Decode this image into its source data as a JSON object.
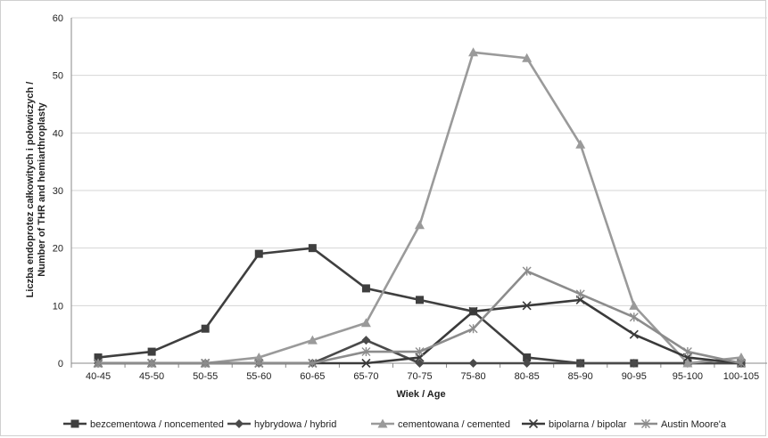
{
  "chart_data": {
    "type": "line",
    "categories": [
      "40-45",
      "45-50",
      "50-55",
      "55-60",
      "60-65",
      "65-70",
      "70-75",
      "75-80",
      "80-85",
      "85-90",
      "90-95",
      "95-100",
      "100-105"
    ],
    "xlabel": "Wiek / Age",
    "ylabel_lines": [
      "Liczba endoprotez całkowitych i połowiczych /",
      "Number of THR and hemiarthroplasty"
    ],
    "ylim": [
      0,
      60
    ],
    "yticks": [
      0,
      10,
      20,
      30,
      40,
      50,
      60
    ],
    "grid": true,
    "legend_position": "bottom",
    "series": [
      {
        "name": "bezcementowa / noncemented",
        "color": "#3f3f3f",
        "marker": "square",
        "values": [
          1,
          2,
          6,
          19,
          20,
          13,
          11,
          9,
          1,
          0,
          0,
          0,
          0
        ]
      },
      {
        "name": "hybrydowa / hybrid",
        "color": "#4a4a4a",
        "marker": "diamond",
        "values": [
          0,
          0,
          0,
          0,
          0,
          4,
          0,
          0,
          0,
          0,
          0,
          0,
          0
        ]
      },
      {
        "name": "cementowana / cemented",
        "color": "#9a9a9a",
        "marker": "triangle",
        "values": [
          0,
          0,
          0,
          1,
          4,
          7,
          24,
          54,
          53,
          38,
          10,
          0,
          1
        ]
      },
      {
        "name": "bipolarna / bipolar",
        "color": "#3a3a3a",
        "marker": "x",
        "values": [
          0,
          0,
          0,
          0,
          0,
          0,
          1,
          9,
          10,
          11,
          5,
          1,
          0
        ]
      },
      {
        "name": "Austin Moore'a",
        "color": "#8c8c8c",
        "marker": "star",
        "values": [
          0,
          0,
          0,
          0,
          0,
          2,
          2,
          6,
          16,
          12,
          8,
          2,
          0
        ]
      }
    ]
  }
}
